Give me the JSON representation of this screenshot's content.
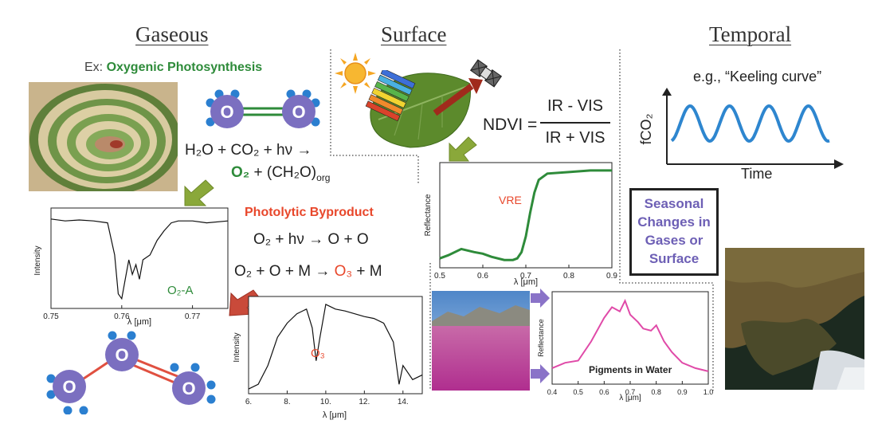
{
  "headings": {
    "gaseous": "Gaseous",
    "surface": "Surface",
    "temporal": "Temporal"
  },
  "gaseous": {
    "example_prefix": "Ex: ",
    "example_label": "Oxygenic Photosynthesis",
    "atom_label": "O",
    "reaction_line1": "H₂O + CO₂ + hν →",
    "reaction_line2_o2": "O₂",
    "reaction_line2_rest": " + (CH₂O)",
    "reaction_line2_sub": "org",
    "photolytic_title": "Photolytic Byproduct",
    "photolytic_eq1": "O₂ + hν → O + O",
    "photolytic_eq2_a": "O₂ + O + M → ",
    "photolytic_eq2_o3": "O₃",
    "photolytic_eq2_b": " + M",
    "colors": {
      "green": "#2e8b3a",
      "red": "#e8472b",
      "atom": "#7b6fc0",
      "atom_dot": "#2b7fd0",
      "arrow_olive": "#7a9a2a",
      "arrow_red": "#c0392b"
    }
  },
  "surface": {
    "ndvi_label": "NDVI =",
    "ndvi_numerator": "IR - VIS",
    "ndvi_denominator": "IR + VIS"
  },
  "temporal": {
    "keeling_label": "e.g., “Keeling curve”",
    "y_label": "fCO₂",
    "x_label": "Time",
    "seasonal_box": "Seasonal Changes in Gases or Surface",
    "seasonal_color": "#6d5fb5"
  },
  "chart_data": [
    {
      "type": "line",
      "id": "o2a",
      "xlabel": "λ [μm]",
      "ylabel": "Intensity",
      "annotation": "O₂-A",
      "xlim": [
        0.75,
        0.775
      ],
      "xticks": [
        "0.75",
        "0.76",
        "0.77"
      ],
      "x": [
        0.75,
        0.752,
        0.754,
        0.756,
        0.758,
        0.759,
        0.7595,
        0.76,
        0.7605,
        0.761,
        0.7615,
        0.762,
        0.7625,
        0.763,
        0.764,
        0.765,
        0.766,
        0.767,
        0.768,
        0.77,
        0.772,
        0.775
      ],
      "y": [
        0.92,
        0.9,
        0.91,
        0.9,
        0.88,
        0.55,
        0.15,
        0.1,
        0.3,
        0.5,
        0.35,
        0.45,
        0.3,
        0.5,
        0.55,
        0.7,
        0.8,
        0.88,
        0.9,
        0.9,
        0.88,
        0.9
      ]
    },
    {
      "type": "line",
      "id": "o3",
      "xlabel": "λ [μm]",
      "ylabel": "Intensity",
      "annotation": "O₃",
      "xlim": [
        6,
        15
      ],
      "xticks": [
        "6.",
        "8.",
        "10.",
        "12.",
        "14."
      ],
      "x": [
        6,
        6.5,
        7,
        7.5,
        8,
        8.5,
        9,
        9.3,
        9.5,
        9.7,
        10,
        10.5,
        11,
        11.5,
        12,
        12.5,
        13,
        13.5,
        13.8,
        14,
        14.5,
        15
      ],
      "y": [
        0.05,
        0.1,
        0.3,
        0.6,
        0.75,
        0.85,
        0.9,
        0.7,
        0.35,
        0.6,
        0.95,
        0.9,
        0.88,
        0.85,
        0.82,
        0.8,
        0.75,
        0.55,
        0.1,
        0.3,
        0.15,
        0.2
      ]
    },
    {
      "type": "line",
      "id": "vre",
      "xlabel": "λ [μm]",
      "ylabel": "Reflectance",
      "annotation": "VRE",
      "xlim": [
        0.5,
        0.9
      ],
      "xticks": [
        "0.5",
        "0.6",
        "0.7",
        "0.8",
        "0.9"
      ],
      "x": [
        0.5,
        0.52,
        0.55,
        0.58,
        0.6,
        0.62,
        0.65,
        0.67,
        0.68,
        0.69,
        0.7,
        0.71,
        0.72,
        0.73,
        0.75,
        0.8,
        0.85,
        0.9
      ],
      "y": [
        0.06,
        0.08,
        0.12,
        0.1,
        0.09,
        0.07,
        0.05,
        0.05,
        0.06,
        0.1,
        0.2,
        0.35,
        0.48,
        0.56,
        0.6,
        0.61,
        0.62,
        0.62
      ]
    },
    {
      "type": "line",
      "id": "pigments",
      "xlabel": "λ [μm]",
      "ylabel": "Reflectance",
      "annotation": "Pigments in Water",
      "xlim": [
        0.4,
        1.0
      ],
      "xticks": [
        "0.4",
        "0.5",
        "0.6",
        "0.7",
        "0.8",
        "0.9",
        "1.0"
      ],
      "x": [
        0.4,
        0.45,
        0.5,
        0.55,
        0.6,
        0.63,
        0.66,
        0.68,
        0.7,
        0.73,
        0.75,
        0.78,
        0.8,
        0.83,
        0.86,
        0.9,
        0.95,
        1.0
      ],
      "y": [
        0.15,
        0.2,
        0.22,
        0.4,
        0.62,
        0.72,
        0.68,
        0.78,
        0.65,
        0.58,
        0.52,
        0.5,
        0.55,
        0.4,
        0.3,
        0.2,
        0.15,
        0.12
      ]
    },
    {
      "type": "line",
      "id": "keeling",
      "xlabel": "Time",
      "ylabel": "fCO₂",
      "note": "schematic sinusoid, 4 cycles, no numeric axes",
      "cycles": 4
    }
  ]
}
